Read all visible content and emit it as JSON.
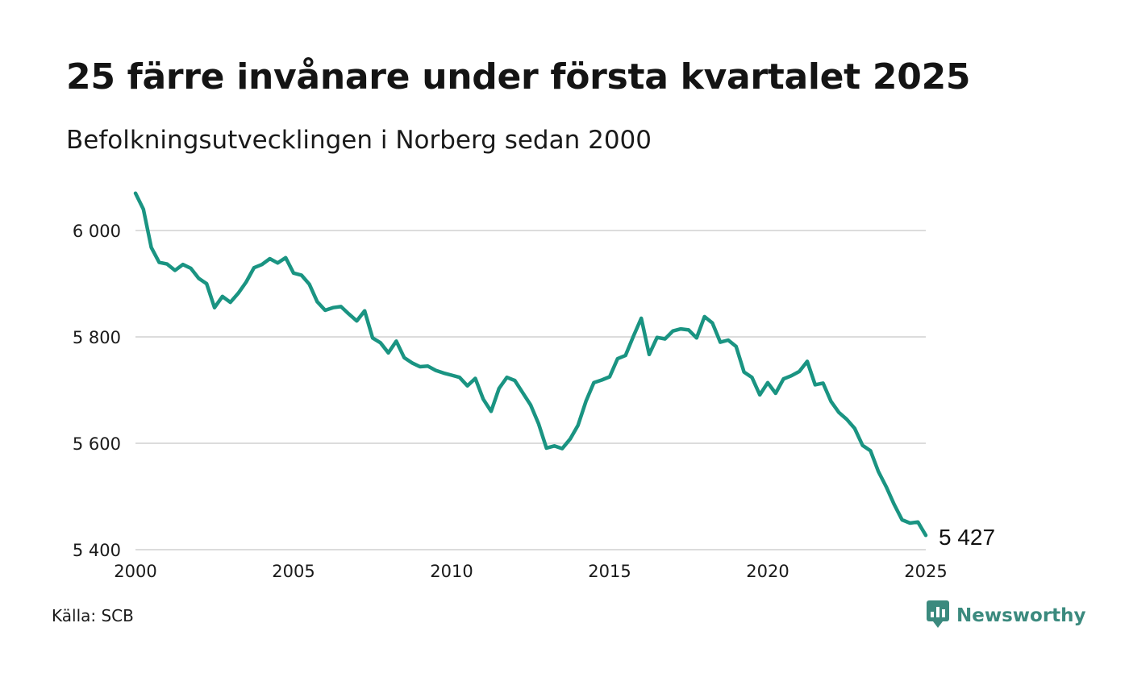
{
  "header": {
    "title": "25 färre invånare under första kvartalet 2025",
    "subtitle": "Befolkningsutvecklingen i Norberg sedan 2000"
  },
  "footer": {
    "source": "Källa: SCB",
    "brand": "Newsworthy"
  },
  "colors": {
    "line": "#1a9482",
    "grid": "#dcdcdc",
    "brand": "#3b8a7e"
  },
  "chart_data": {
    "type": "line",
    "title": "25 färre invånare under första kvartalet 2025",
    "subtitle": "Befolkningsutvecklingen i Norberg sedan 2000",
    "xlabel": "",
    "ylabel": "",
    "xlim": [
      2000,
      2025
    ],
    "ylim": [
      5400,
      6100
    ],
    "grid": true,
    "x_ticks": [
      2000,
      2005,
      2010,
      2015,
      2020,
      2025
    ],
    "x_tick_labels": [
      "2000",
      "2005",
      "2010",
      "2015",
      "2020",
      "2025"
    ],
    "y_ticks": [
      5400,
      5600,
      5800,
      6000
    ],
    "y_tick_labels": [
      "5 400",
      "5 600",
      "5 800",
      "6 000"
    ],
    "end_label": "5 427",
    "series": [
      {
        "x": [
          2000.0,
          2000.25,
          2000.5,
          2000.75,
          2001.0,
          2001.25,
          2001.5,
          2001.75,
          2002.0,
          2002.25,
          2002.5,
          2002.75,
          2003.0,
          2003.25,
          2003.5,
          2003.75,
          2004.0,
          2004.25,
          2004.5,
          2004.75,
          2005.0,
          2005.25,
          2005.5,
          2005.75,
          2006.0,
          2006.25,
          2006.5,
          2006.75,
          2007.0,
          2007.25,
          2007.5,
          2007.75,
          2008.0,
          2008.25,
          2008.5,
          2008.75,
          2009.0,
          2009.25,
          2009.5,
          2009.75,
          2010.0,
          2010.25,
          2010.5,
          2010.75,
          2011.0,
          2011.25,
          2011.5,
          2011.75,
          2012.0,
          2012.25,
          2012.5,
          2012.75,
          2013.0,
          2013.25,
          2013.5,
          2013.75,
          2014.0,
          2014.25,
          2014.5,
          2014.75,
          2015.0,
          2015.25,
          2015.5,
          2015.75,
          2016.0,
          2016.25,
          2016.5,
          2016.75,
          2017.0,
          2017.25,
          2017.5,
          2017.75,
          2018.0,
          2018.25,
          2018.5,
          2018.75,
          2019.0,
          2019.25,
          2019.5,
          2019.75,
          2020.0,
          2020.25,
          2020.5,
          2020.75,
          2021.0,
          2021.25,
          2021.5,
          2021.75,
          2022.0,
          2022.25,
          2022.5,
          2022.75,
          2023.0,
          2023.25,
          2023.5,
          2023.75,
          2024.0,
          2024.25,
          2024.5,
          2024.75,
          2025.0
        ],
        "y": [
          6070,
          6040,
          5968,
          5940,
          5937,
          5925,
          5936,
          5929,
          5910,
          5900,
          5855,
          5876,
          5865,
          5882,
          5903,
          5930,
          5936,
          5947,
          5939,
          5949,
          5920,
          5916,
          5899,
          5866,
          5850,
          5855,
          5857,
          5843,
          5830,
          5849,
          5798,
          5789,
          5770,
          5792,
          5761,
          5751,
          5744,
          5745,
          5737,
          5732,
          5728,
          5724,
          5708,
          5722,
          5683,
          5660,
          5703,
          5724,
          5718,
          5695,
          5672,
          5637,
          5591,
          5595,
          5590,
          5608,
          5634,
          5679,
          5714,
          5719,
          5725,
          5759,
          5765,
          5801,
          5835,
          5767,
          5799,
          5796,
          5811,
          5815,
          5813,
          5798,
          5838,
          5826,
          5790,
          5794,
          5782,
          5734,
          5724,
          5691,
          5714,
          5694,
          5721,
          5727,
          5735,
          5754,
          5710,
          5713,
          5679,
          5658,
          5645,
          5628,
          5596,
          5586,
          5547,
          5518,
          5485,
          5456,
          5450,
          5452,
          5427
        ]
      }
    ]
  }
}
